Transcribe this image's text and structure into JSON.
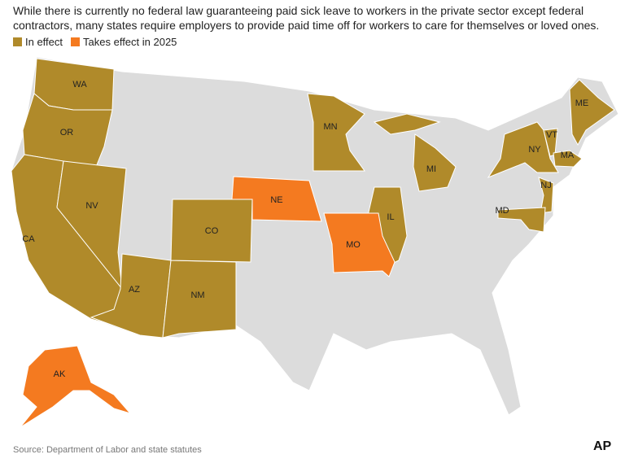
{
  "description": "While there is currently no federal law guaranteeing paid sick leave to workers in the private sector except federal contractors, many states require employers to provide paid time off for workers to care for themselves or loved ones.",
  "legend": [
    {
      "label": "In effect",
      "color": "#b08a2a",
      "states": [
        "WA",
        "OR",
        "CA",
        "NV",
        "AZ",
        "NM",
        "CO",
        "MN",
        "MI",
        "IL",
        "NY",
        "VT",
        "ME",
        "MA",
        "NJ",
        "MD"
      ]
    },
    {
      "label": "Takes effect in 2025",
      "color": "#f47a20",
      "states": [
        "NE",
        "MO",
        "AK"
      ]
    }
  ],
  "source": "Source: Department of Labor and state statutes",
  "logo": "AP"
}
